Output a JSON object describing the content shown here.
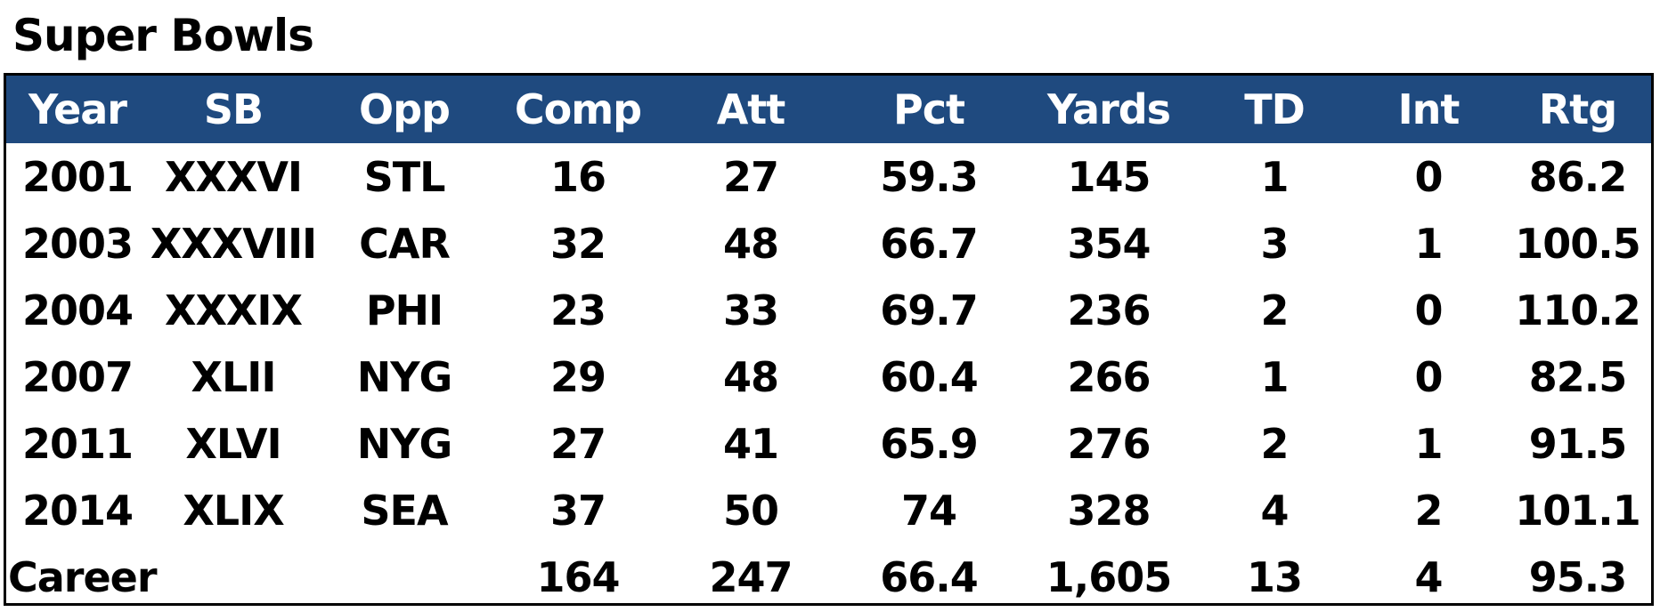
{
  "title": "Super Bowls",
  "columns": [
    "Year",
    "SB",
    "Opp",
    "Comp",
    "Att",
    "Pct",
    "Yards",
    "TD",
    "Int",
    "Rtg"
  ],
  "rows": [
    [
      "2001",
      "XXXVI",
      "STL",
      "16",
      "27",
      "59.3",
      "145",
      "1",
      "0",
      "86.2"
    ],
    [
      "2003",
      "XXXVIII",
      "CAR",
      "32",
      "48",
      "66.7",
      "354",
      "3",
      "1",
      "100.5"
    ],
    [
      "2004",
      "XXXIX",
      "PHI",
      "23",
      "33",
      "69.7",
      "236",
      "2",
      "0",
      "110.2"
    ],
    [
      "2007",
      "XLII",
      "NYG",
      "29",
      "48",
      "60.4",
      "266",
      "1",
      "0",
      "82.5"
    ],
    [
      "2011",
      "XLVI",
      "NYG",
      "27",
      "41",
      "65.9",
      "276",
      "2",
      "1",
      "91.5"
    ],
    [
      "2014",
      "XLIX",
      "SEA",
      "37",
      "50",
      "74",
      "328",
      "4",
      "2",
      "101.1"
    ]
  ],
  "career": {
    "label": "Career",
    "comp": "164",
    "att": "247",
    "pct": "66.4",
    "yards": "1,605",
    "td": "13",
    "int": "4",
    "rtg": "95.3"
  },
  "colors": {
    "header_bg": "#1f4a7f",
    "header_text": "#ffffff"
  }
}
